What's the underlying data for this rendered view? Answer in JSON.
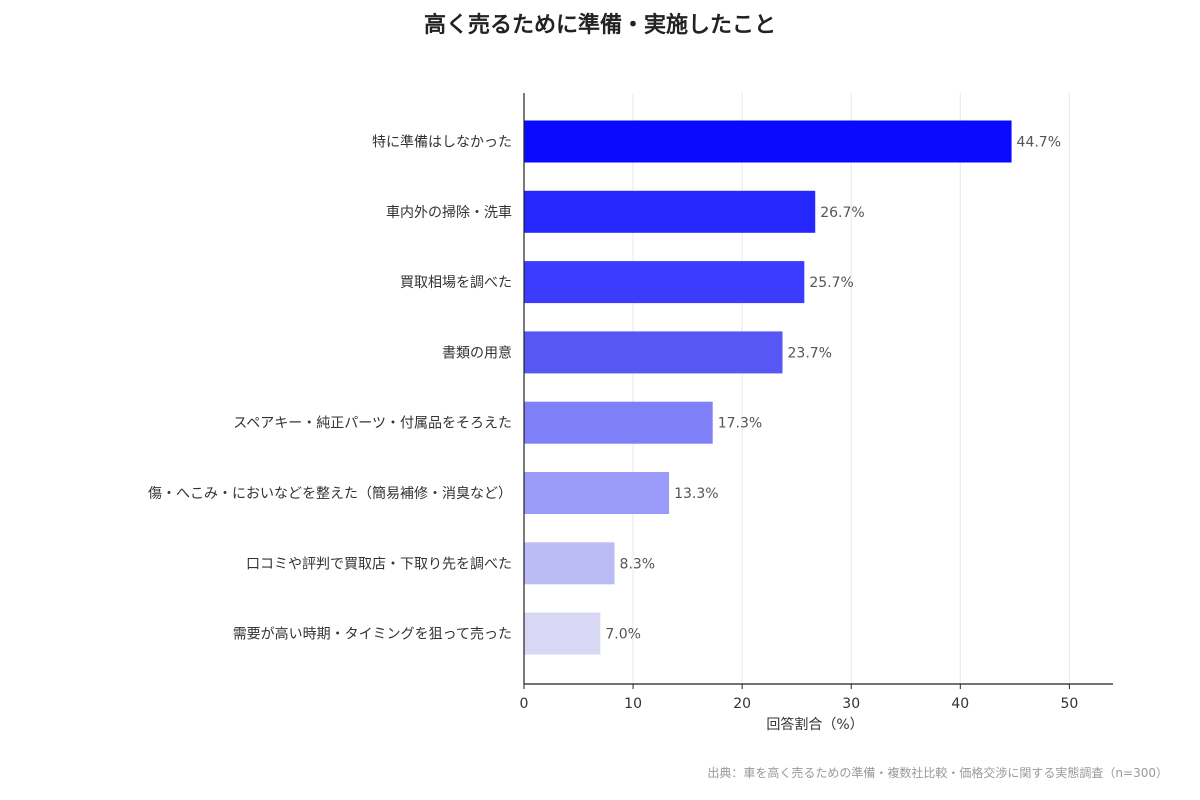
{
  "chart_data": {
    "type": "bar",
    "orientation": "horizontal",
    "title": "高く売るために準備・実施したこと",
    "xlabel": "回答割合（%）",
    "ylabel": "",
    "xlim": [
      0,
      54
    ],
    "xticks": [
      0,
      10,
      20,
      30,
      40,
      50
    ],
    "grid": "vertical",
    "categories": [
      "特に準備はしなかった",
      "車内外の掃除・洗車",
      "買取相場を調べた",
      "書類の用意",
      "スペアキー・純正パーツ・付属品をそろえた",
      "傷・へこみ・においなどを整えた（簡易補修・消臭など）",
      "口コミや評判で買取店・下取り先を調べた",
      "需要が高い時期・タイミングを狙って売った"
    ],
    "values": [
      44.7,
      26.7,
      25.7,
      23.7,
      17.3,
      13.3,
      8.3,
      7.0
    ],
    "value_labels": [
      "44.7%",
      "26.7%",
      "25.7%",
      "23.7%",
      "17.3%",
      "13.3%",
      "8.3%",
      "7.0%"
    ],
    "colors": [
      "#0a0aff",
      "#2626ff",
      "#3c3cff",
      "#5757f4",
      "#7f7ff8",
      "#9a9af8",
      "#bbbbf6",
      "#d8d8f4"
    ],
    "source": "出典：車を高く売るための準備・複数社比較・価格交渉に関する実態調査（n=300）"
  }
}
